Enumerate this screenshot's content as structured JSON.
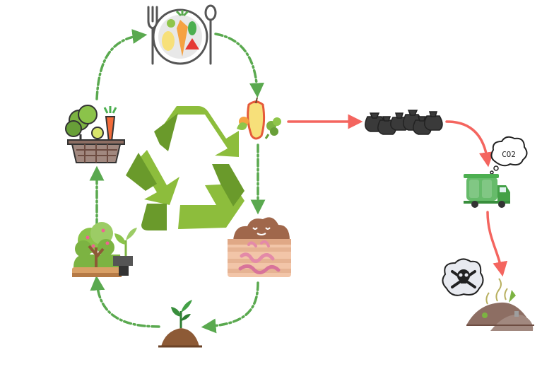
{
  "diagram": {
    "nodes": [
      {
        "id": "plate",
        "icon": "plate-cutlery-icon"
      },
      {
        "id": "food-scraps",
        "icon": "food-scraps-icon"
      },
      {
        "id": "compost-bin",
        "icon": "compost-bin-worms-icon"
      },
      {
        "id": "sprout",
        "icon": "sprout-soil-icon"
      },
      {
        "id": "garden",
        "icon": "garden-tree-seedling-icon"
      },
      {
        "id": "vegetable-basket",
        "icon": "vegetable-basket-icon"
      },
      {
        "id": "recycle",
        "icon": "recycle-symbol-icon"
      },
      {
        "id": "trash-bags",
        "icon": "trash-bags-icon"
      },
      {
        "id": "garbage-truck",
        "icon": "garbage-truck-icon"
      },
      {
        "id": "toxic-cloud",
        "icon": "skull-crossbones-icon"
      },
      {
        "id": "landfill",
        "icon": "landfill-heap-icon"
      }
    ],
    "co2_label": "CO2",
    "colors": {
      "cycle_arrow": "#5aa94f",
      "waste_arrow": "#f4655f",
      "recycle_light": "#8dbd3c",
      "recycle_dark": "#6a9a2b"
    }
  }
}
